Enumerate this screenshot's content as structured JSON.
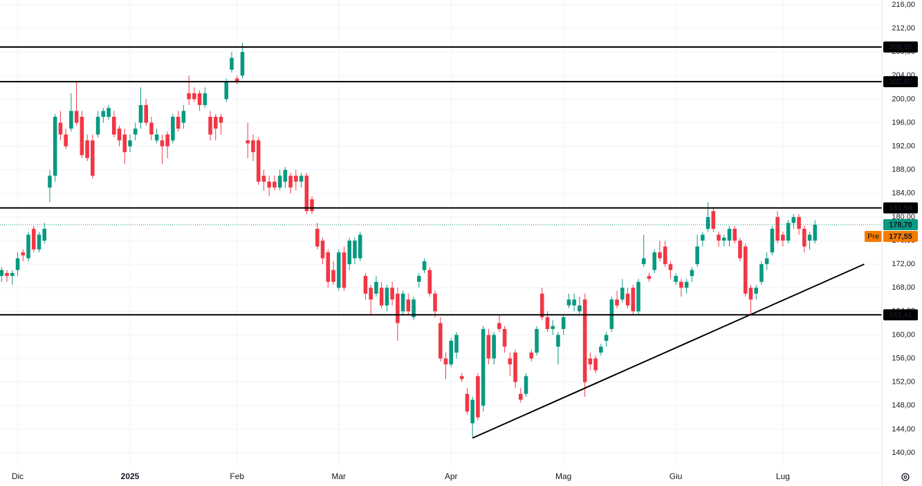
{
  "chart_data": {
    "type": "candlestick",
    "up_color": "#089981",
    "down_color": "#f23645",
    "open": [
      170,
      170.5,
      170,
      171,
      174,
      173,
      178,
      174.5,
      176,
      185,
      187,
      196,
      194,
      195,
      198,
      197,
      193,
      193,
      194,
      197,
      197,
      197,
      195,
      194,
      192,
      194,
      196,
      199,
      196,
      193,
      193,
      194,
      193,
      197,
      196,
      201,
      201,
      201,
      199,
      197,
      197,
      197,
      200,
      205,
      203.5,
      204,
      193,
      193,
      193,
      187,
      186,
      186,
      185,
      186,
      187,
      187,
      186,
      187,
      183,
      178,
      176,
      174,
      171,
      168,
      174,
      172,
      173,
      173,
      170,
      168,
      167,
      168,
      165,
      168,
      167,
      164,
      166,
      163,
      169,
      171,
      171,
      167,
      162,
      156,
      155,
      157,
      153,
      150,
      145,
      153,
      148,
      160,
      156,
      162,
      161,
      156,
      157,
      150,
      150,
      157,
      157,
      167,
      163,
      161,
      158,
      161,
      165,
      165,
      164,
      166,
      156,
      156,
      157,
      159,
      161,
      166,
      166,
      167,
      168,
      164,
      172,
      170,
      171,
      174,
      175,
      172,
      169,
      169,
      168,
      170,
      172,
      176,
      178,
      181,
      177,
      176,
      176,
      178,
      176,
      175,
      168,
      167,
      169,
      172,
      174,
      180,
      177,
      176,
      179,
      180,
      178,
      176,
      176
    ],
    "high": [
      171.5,
      171,
      171,
      174,
      174.5,
      177.5,
      178.5,
      177.5,
      179,
      188,
      197.5,
      198,
      195,
      201,
      203,
      198,
      194,
      194,
      198,
      198.5,
      199,
      198,
      195.5,
      195,
      194,
      196,
      202,
      200,
      197,
      195,
      194,
      194.5,
      197.5,
      198,
      199,
      204,
      202,
      201.5,
      202,
      198,
      197.5,
      197.5,
      203.5,
      208,
      204,
      209.5,
      196,
      194,
      193.5,
      188,
      187,
      187,
      188,
      188.5,
      187.5,
      188,
      187.5,
      187.5,
      183.5,
      179,
      176.5,
      174.5,
      172.5,
      174.5,
      175,
      176.5,
      176.5,
      177.5,
      170.5,
      168.5,
      170,
      169,
      168.5,
      169,
      168,
      167.5,
      167,
      166.5,
      170.5,
      173,
      171.5,
      167.5,
      163,
      157,
      159.5,
      160.5,
      153.5,
      151,
      149.5,
      153.5,
      161.5,
      161,
      160.5,
      163.5,
      161.5,
      157,
      157.5,
      151,
      153.5,
      157.5,
      161.5,
      168,
      164,
      162.5,
      160.5,
      163.5,
      167,
      167,
      166.5,
      167,
      157,
      156.5,
      158.5,
      160.5,
      166.5,
      167.5,
      169.5,
      168,
      168.5,
      169.5,
      177,
      170.5,
      174.5,
      176,
      176,
      172.5,
      170.5,
      169.5,
      169.5,
      171.5,
      177,
      177.5,
      182.5,
      181.5,
      177.5,
      177,
      178.5,
      178.5,
      176.5,
      175.5,
      168.5,
      168.5,
      172.5,
      174,
      178.5,
      181,
      177.5,
      179.5,
      180.5,
      180.5,
      178.5,
      177.5,
      179.5
    ],
    "low": [
      169,
      169,
      168.5,
      170,
      172.5,
      172.5,
      174,
      174,
      175.5,
      182.5,
      186,
      193,
      191.5,
      194.5,
      195.5,
      190,
      189.5,
      186.5,
      193.5,
      196,
      196.5,
      193.5,
      192,
      189,
      191,
      193,
      195,
      195.5,
      193,
      192.5,
      189,
      190,
      192.5,
      194.5,
      195,
      199,
      199.5,
      198,
      198.5,
      193,
      193,
      194,
      199.5,
      204.5,
      202.5,
      203.5,
      190,
      189.5,
      185.5,
      184.5,
      183.5,
      184.5,
      184.5,
      185,
      184,
      184.5,
      185,
      180.5,
      180.5,
      174.5,
      172,
      168,
      168.5,
      167.5,
      167.5,
      171,
      172,
      172.5,
      166,
      163.5,
      166.5,
      164.5,
      164,
      165,
      159,
      163.5,
      163.5,
      162.5,
      168,
      170.5,
      166.5,
      163,
      155.5,
      152.5,
      154.5,
      156,
      152,
      146.5,
      142.5,
      145.5,
      147,
      155,
      155,
      160.5,
      157,
      153,
      151,
      148.5,
      149.5,
      155.5,
      156.5,
      162.5,
      160.5,
      160,
      155,
      160,
      164.5,
      164,
      163.5,
      149.5,
      154,
      153.5,
      156.5,
      158,
      160.5,
      164.5,
      165.5,
      164.5,
      163.5,
      163.5,
      171.5,
      169,
      170.5,
      172.5,
      171.5,
      169.5,
      168.5,
      166.5,
      167,
      169,
      171.5,
      175,
      177.5,
      177.5,
      175,
      175,
      175,
      175.5,
      172.5,
      166.5,
      163.41,
      166,
      168.5,
      171,
      173.5,
      175.5,
      175,
      175.5,
      178,
      177,
      174,
      174.5,
      175.5
    ],
    "close": [
      171,
      170,
      170.5,
      173,
      173.5,
      177,
      174.5,
      177,
      178,
      187,
      197,
      194,
      192,
      198,
      196,
      190.5,
      190,
      187,
      197,
      198,
      198.5,
      194,
      193,
      191,
      193,
      195,
      199,
      196,
      194,
      194,
      192,
      192,
      197,
      195,
      198,
      200,
      200,
      199,
      201,
      194,
      195,
      196,
      203,
      207,
      203,
      208,
      192.5,
      191,
      186,
      186,
      185,
      185,
      187,
      188,
      185,
      186,
      187,
      181,
      181,
      175,
      173,
      169,
      169,
      174,
      168,
      176,
      176,
      177,
      167,
      166,
      169,
      165,
      168,
      166,
      162,
      167,
      164,
      166,
      170,
      172.5,
      167,
      164,
      156,
      155,
      159,
      160,
      152.5,
      147,
      149,
      146,
      161,
      156,
      160,
      161,
      158,
      155,
      152,
      149,
      153,
      156,
      161,
      163,
      161,
      161.5,
      160,
      163,
      166,
      166,
      165,
      152,
      155,
      154,
      158,
      160,
      166,
      165,
      168,
      165,
      164,
      169,
      173,
      169.5,
      174,
      173,
      172,
      171,
      170,
      168,
      169,
      171,
      175,
      177,
      180,
      178,
      176,
      176.5,
      178,
      176,
      173,
      167,
      166,
      168,
      172,
      173,
      178,
      176,
      176,
      179,
      180,
      178,
      175,
      177,
      178.7
    ],
    "xlim": [
      -0.3,
      164.5
    ],
    "xticks": [
      {
        "value": 3,
        "label": "Dic"
      },
      {
        "value": 24,
        "label": "2025"
      },
      {
        "value": 44,
        "label": "Feb"
      },
      {
        "value": 63,
        "label": "Mar"
      },
      {
        "value": 84,
        "label": "Apr"
      },
      {
        "value": 105,
        "label": "Mag"
      },
      {
        "value": 126,
        "label": "Giu"
      },
      {
        "value": 146,
        "label": "Lug"
      }
    ],
    "ylim": [
      138,
      216.82
    ],
    "yticks": [
      {
        "value": 140,
        "label": "140,00"
      },
      {
        "value": 144,
        "label": "144,00"
      },
      {
        "value": 148,
        "label": "148,00"
      },
      {
        "value": 152,
        "label": "152,00"
      },
      {
        "value": 156,
        "label": "156,00"
      },
      {
        "value": 160,
        "label": "160,00"
      },
      {
        "value": 164,
        "label": "164,00"
      },
      {
        "value": 168,
        "label": "168,00"
      },
      {
        "value": 172,
        "label": "172,00"
      },
      {
        "value": 176,
        "label": "176,00"
      },
      {
        "value": 180,
        "label": "180,00"
      },
      {
        "value": 184,
        "label": "184,00"
      },
      {
        "value": 188,
        "label": "188,00"
      },
      {
        "value": 192,
        "label": "192,00"
      },
      {
        "value": 196,
        "label": "196,00"
      },
      {
        "value": 200,
        "label": "200,00"
      },
      {
        "value": 204,
        "label": "204,00"
      },
      {
        "value": 208,
        "label": "208,00"
      },
      {
        "value": 212,
        "label": "212,00"
      },
      {
        "value": 216,
        "label": "216,00"
      }
    ],
    "grid": true,
    "levels": [
      {
        "value": 208.85,
        "label": "208,85"
      },
      {
        "value": 202.97,
        "label": "202,97"
      },
      {
        "value": 181.54,
        "label": "181,54"
      },
      {
        "value": 163.41,
        "label": "163,41"
      }
    ],
    "trendline": {
      "x": [
        88,
        161.2
      ],
      "y": [
        142.5,
        172
      ]
    },
    "last_price": {
      "value": 178.7,
      "label": "178,70",
      "color": "#089981"
    },
    "premarket": {
      "tag": "Pre",
      "value": 177.55,
      "label": "177,55",
      "color": "#f57c00"
    }
  }
}
